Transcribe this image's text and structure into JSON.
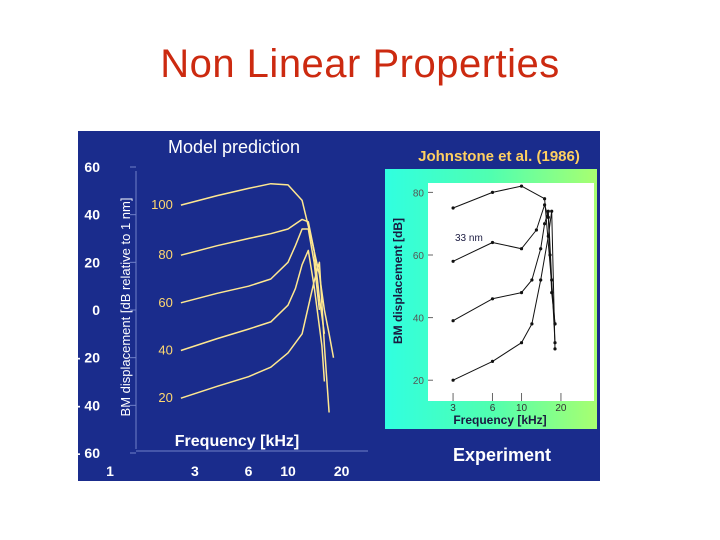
{
  "slide": {
    "title": "Non Linear Properties"
  },
  "colors": {
    "title": "#cc2a10",
    "panel_bg": "#1a2c8c",
    "curve": "#ffe890",
    "dB_label": "#ffd870",
    "left_text": "#ffffff",
    "right_title": "#ffd060"
  },
  "chart_data": [
    {
      "type": "line",
      "title": "Model prediction",
      "xlabel": "Frequency [kHz]",
      "ylabel": "BM displacement [dB relative to 1 nm]",
      "x_scale": "log",
      "xlim": [
        1,
        30
      ],
      "ylim": [
        -60,
        60
      ],
      "x_ticks": [
        1,
        3,
        6,
        10,
        20
      ],
      "x_tick_labels": [
        "1",
        "3",
        "6",
        "10",
        "20"
      ],
      "y_ticks": [
        60,
        40,
        20,
        0,
        -20,
        -40,
        -60
      ],
      "y_tick_labels": [
        "60",
        "40",
        "20",
        "0",
        "- 20",
        "- 40",
        "- 60"
      ],
      "grid": false,
      "series": [
        {
          "name": "100",
          "x": [
            2.5,
            4,
            6,
            8,
            10,
            12,
            13.5,
            15,
            16,
            17,
            18
          ],
          "y": [
            44,
            48,
            51,
            53,
            52.5,
            46,
            30,
            15,
            0,
            -10,
            -20
          ]
        },
        {
          "name": "80",
          "x": [
            2.5,
            4,
            6,
            8,
            10,
            12,
            13,
            14,
            15,
            16
          ],
          "y": [
            23,
            27,
            30,
            32,
            34,
            38,
            37,
            25,
            5,
            -10
          ]
        },
        {
          "name": "60",
          "x": [
            2.5,
            4,
            6,
            8,
            10,
            11,
            12,
            13,
            14,
            15
          ],
          "y": [
            3,
            7,
            10,
            13,
            20,
            27,
            34,
            34,
            20,
            0
          ]
        },
        {
          "name": "40",
          "x": [
            2.5,
            4,
            6,
            8,
            10,
            11,
            12,
            13,
            14,
            15.5,
            16
          ],
          "y": [
            -17,
            -12,
            -8,
            -5,
            2,
            9,
            19,
            25,
            10,
            -15,
            -30
          ]
        },
        {
          "name": "20",
          "x": [
            2.5,
            4,
            6,
            8,
            10,
            12,
            14,
            15,
            16,
            17
          ],
          "y": [
            -37,
            -32,
            -28,
            -24,
            -18,
            -10,
            12,
            20,
            -15,
            -43
          ]
        }
      ]
    },
    {
      "type": "line",
      "title": "Johnstone et al. (1986)",
      "xlabel": "Frequency [kHz]",
      "ylabel": "BM displacement [dB]",
      "x_scale": "log",
      "xlim": [
        2,
        30
      ],
      "ylim": [
        14,
        83
      ],
      "x_ticks": [
        3,
        6,
        10,
        20
      ],
      "x_tick_labels": [
        "3",
        "6",
        "10",
        "20"
      ],
      "y_ticks": [
        80,
        60,
        40,
        20
      ],
      "y_tick_labels": [
        "80",
        "60",
        "40",
        "20"
      ],
      "annotations": [
        "33 nm"
      ],
      "footer_label": "Experiment",
      "series": [
        {
          "name": "",
          "x": [
            3,
            6,
            10,
            15,
            18
          ],
          "y": [
            75,
            80,
            82,
            78,
            38
          ]
        },
        {
          "name": "",
          "x": [
            3,
            6,
            10,
            13,
            15,
            16,
            16.5,
            17,
            18
          ],
          "y": [
            58,
            64,
            62,
            68,
            76,
            72,
            60,
            48,
            38
          ]
        },
        {
          "name": "",
          "x": [
            3,
            6,
            10,
            12,
            14,
            15,
            16,
            17,
            18
          ],
          "y": [
            39,
            46,
            48,
            52,
            62,
            70,
            74,
            52,
            32
          ]
        },
        {
          "name": "",
          "x": [
            3,
            6,
            10,
            12,
            14,
            16,
            17,
            18
          ],
          "y": [
            20,
            26,
            32,
            38,
            52,
            66,
            74,
            30
          ]
        }
      ]
    }
  ]
}
